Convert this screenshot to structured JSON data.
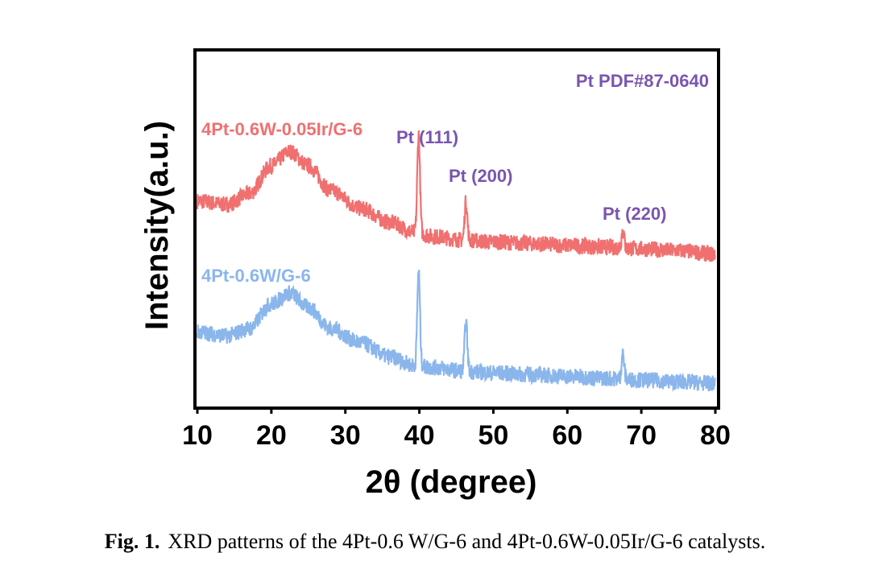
{
  "chart_data": {
    "type": "line",
    "xlabel": "2θ (degree)",
    "ylabel": "Intensity(a.u.)",
    "xlim": [
      10,
      80
    ],
    "ylim": [
      0,
      100
    ],
    "xticks": [
      10,
      20,
      30,
      40,
      50,
      60,
      70,
      80
    ],
    "grid": false,
    "reference": {
      "label": "Pt  PDF#87-0640"
    },
    "series": [
      {
        "name": "4Pt-0.6W-0.05Ir/G-6",
        "color": "#f07070",
        "baseline": [
          [
            10,
            58
          ],
          [
            14,
            57
          ],
          [
            17,
            60
          ],
          [
            20,
            68
          ],
          [
            22.5,
            72
          ],
          [
            25,
            68
          ],
          [
            28,
            61
          ],
          [
            32,
            56
          ],
          [
            36,
            52
          ],
          [
            39.5,
            49
          ],
          [
            42,
            48
          ],
          [
            46,
            47
          ],
          [
            50,
            46.5
          ],
          [
            55,
            46
          ],
          [
            60,
            45.5
          ],
          [
            65,
            45
          ],
          [
            70,
            44.5
          ],
          [
            75,
            44
          ],
          [
            80,
            43
          ]
        ],
        "noise": 2.3,
        "peaks": [
          {
            "x": 39.9,
            "height": 28,
            "width": 0.18,
            "label": "Pt (111)"
          },
          {
            "x": 46.3,
            "height": 11,
            "width": 0.18,
            "label": "Pt (200)"
          },
          {
            "x": 67.5,
            "height": 5,
            "width": 0.18,
            "label": "Pt (220)"
          }
        ]
      },
      {
        "name": "4Pt-0.6W/G-6",
        "color": "#8ab6ec",
        "baseline": [
          [
            10,
            21
          ],
          [
            14,
            20
          ],
          [
            17,
            22
          ],
          [
            20,
            29
          ],
          [
            22.5,
            32
          ],
          [
            25,
            28
          ],
          [
            28,
            22
          ],
          [
            32,
            18
          ],
          [
            36,
            14
          ],
          [
            39.5,
            11.5
          ],
          [
            42,
            11
          ],
          [
            46,
            10
          ],
          [
            50,
            9.5
          ],
          [
            55,
            9
          ],
          [
            60,
            8.5
          ],
          [
            65,
            8
          ],
          [
            70,
            7.5
          ],
          [
            75,
            7
          ],
          [
            80,
            6.5
          ]
        ],
        "noise": 2.3,
        "peaks": [
          {
            "x": 39.9,
            "height": 27,
            "width": 0.18
          },
          {
            "x": 46.3,
            "height": 14,
            "width": 0.18
          },
          {
            "x": 67.5,
            "height": 7,
            "width": 0.18
          }
        ]
      }
    ],
    "reference_color": "#7a55b0"
  },
  "caption": {
    "fig_no": "Fig. 1.",
    "text": "XRD patterns of the 4Pt-0.6 W/G-6 and 4Pt-0.6W-0.05Ir/G-6 catalysts."
  }
}
